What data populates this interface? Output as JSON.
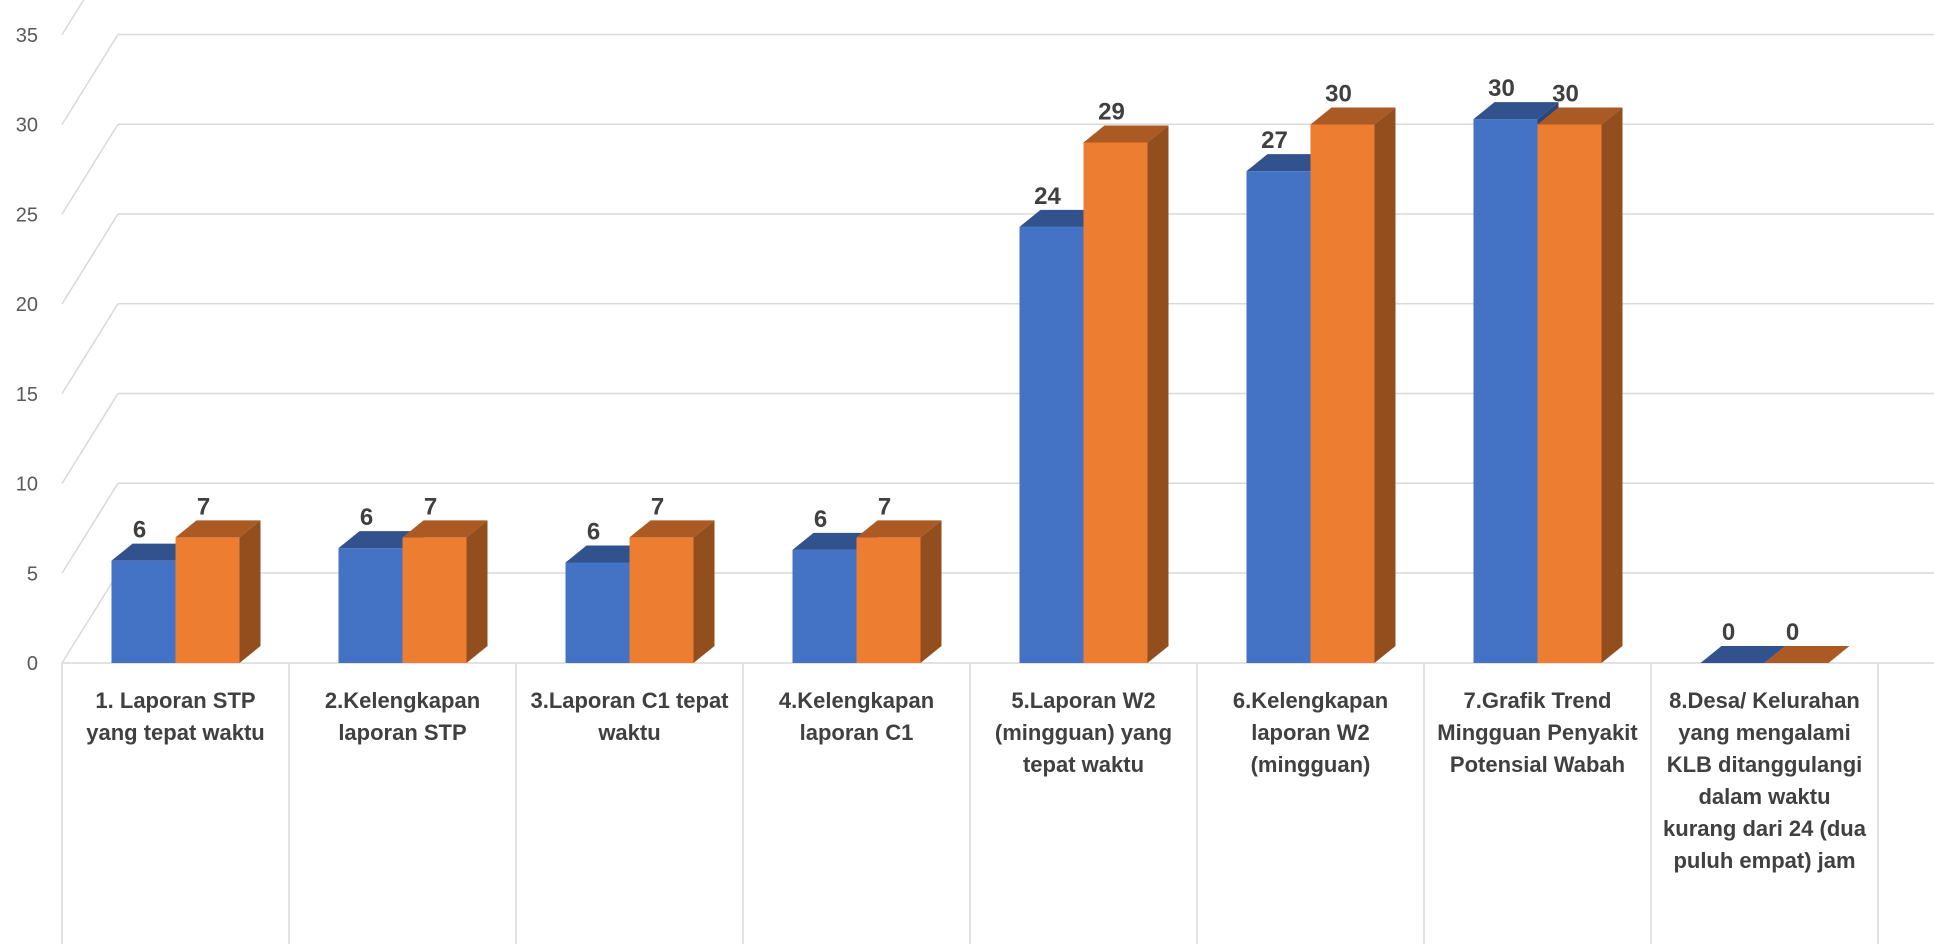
{
  "chart_data": {
    "type": "bar",
    "style": "3d-clustered-column",
    "title": "",
    "xlabel": "",
    "ylabel": "",
    "ylim": [
      0,
      35
    ],
    "yticks": [
      "0",
      "5",
      "10",
      "15",
      "20",
      "25",
      "30",
      "35"
    ],
    "grid": true,
    "legend": "none",
    "categories": [
      "1. Laporan STP yang tepat waktu",
      "2.Kelengkapan laporan STP",
      "3.Laporan C1 tepat waktu",
      "4.Kelengkapan laporan C1",
      "5.Laporan W2 (mingguan) yang tepat waktu",
      "6.Kelengkapan laporan W2 (mingguan)",
      "7.Grafik Trend Mingguan Penyakit Potensial Wabah",
      "8.Desa/ Kelurahan yang mengalami KLB ditanggulangi dalam waktu kurang dari 24 (dua puluh empat) jam"
    ],
    "series": [
      {
        "color": "#4472C4",
        "values": [
          5.7,
          6.4,
          5.6,
          6.3,
          24.3,
          27.4,
          30.3,
          0
        ],
        "labels": [
          "6",
          "6",
          "6",
          "6",
          "24",
          "27",
          "30",
          "0"
        ]
      },
      {
        "color": "#ED7D31",
        "values": [
          7,
          7,
          7,
          7,
          29,
          30,
          30,
          0
        ],
        "labels": [
          "7",
          "7",
          "7",
          "7",
          "29",
          "30",
          "30",
          "0"
        ]
      }
    ]
  }
}
